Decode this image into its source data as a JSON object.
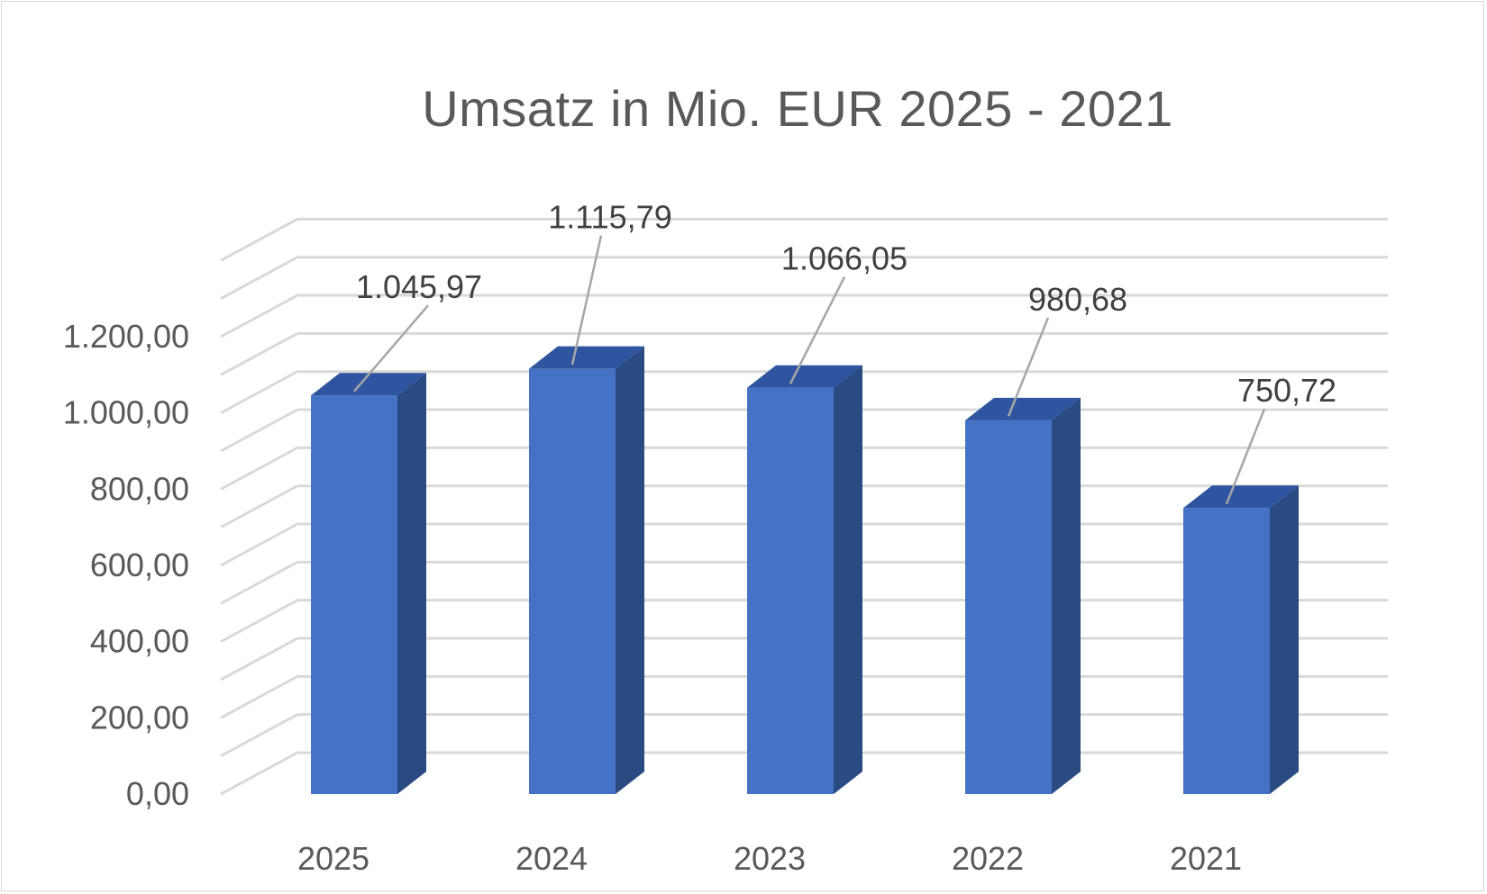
{
  "chart_data": {
    "type": "bar",
    "title": "Umsatz in Mio. EUR 2025 - 2021",
    "categories": [
      "2025",
      "2024",
      "2023",
      "2022",
      "2021"
    ],
    "values": [
      1045.97,
      1115.79,
      1066.05,
      980.68,
      750.72
    ],
    "data_labels": [
      "1.045,97",
      "1.115,79",
      "1.066,05",
      "980,68",
      "750,72"
    ],
    "y_ticks": [
      0,
      200,
      400,
      600,
      800,
      1000,
      1200
    ],
    "y_tick_labels": [
      "0,00",
      "200,00",
      "400,00",
      "600,00",
      "800,00",
      "1.000,00",
      "1.200,00"
    ],
    "ylim": [
      0,
      1400
    ],
    "xlabel": "",
    "ylabel": "",
    "grid": true,
    "legend": "none",
    "style": "3d-column",
    "colors": {
      "bar_front": "#4472c4",
      "bar_side": "#2a4a82",
      "bar_top": "#2f55a0",
      "grid": "#d9d9d9",
      "leader": "#a6a6a6",
      "text": "#595959"
    }
  }
}
